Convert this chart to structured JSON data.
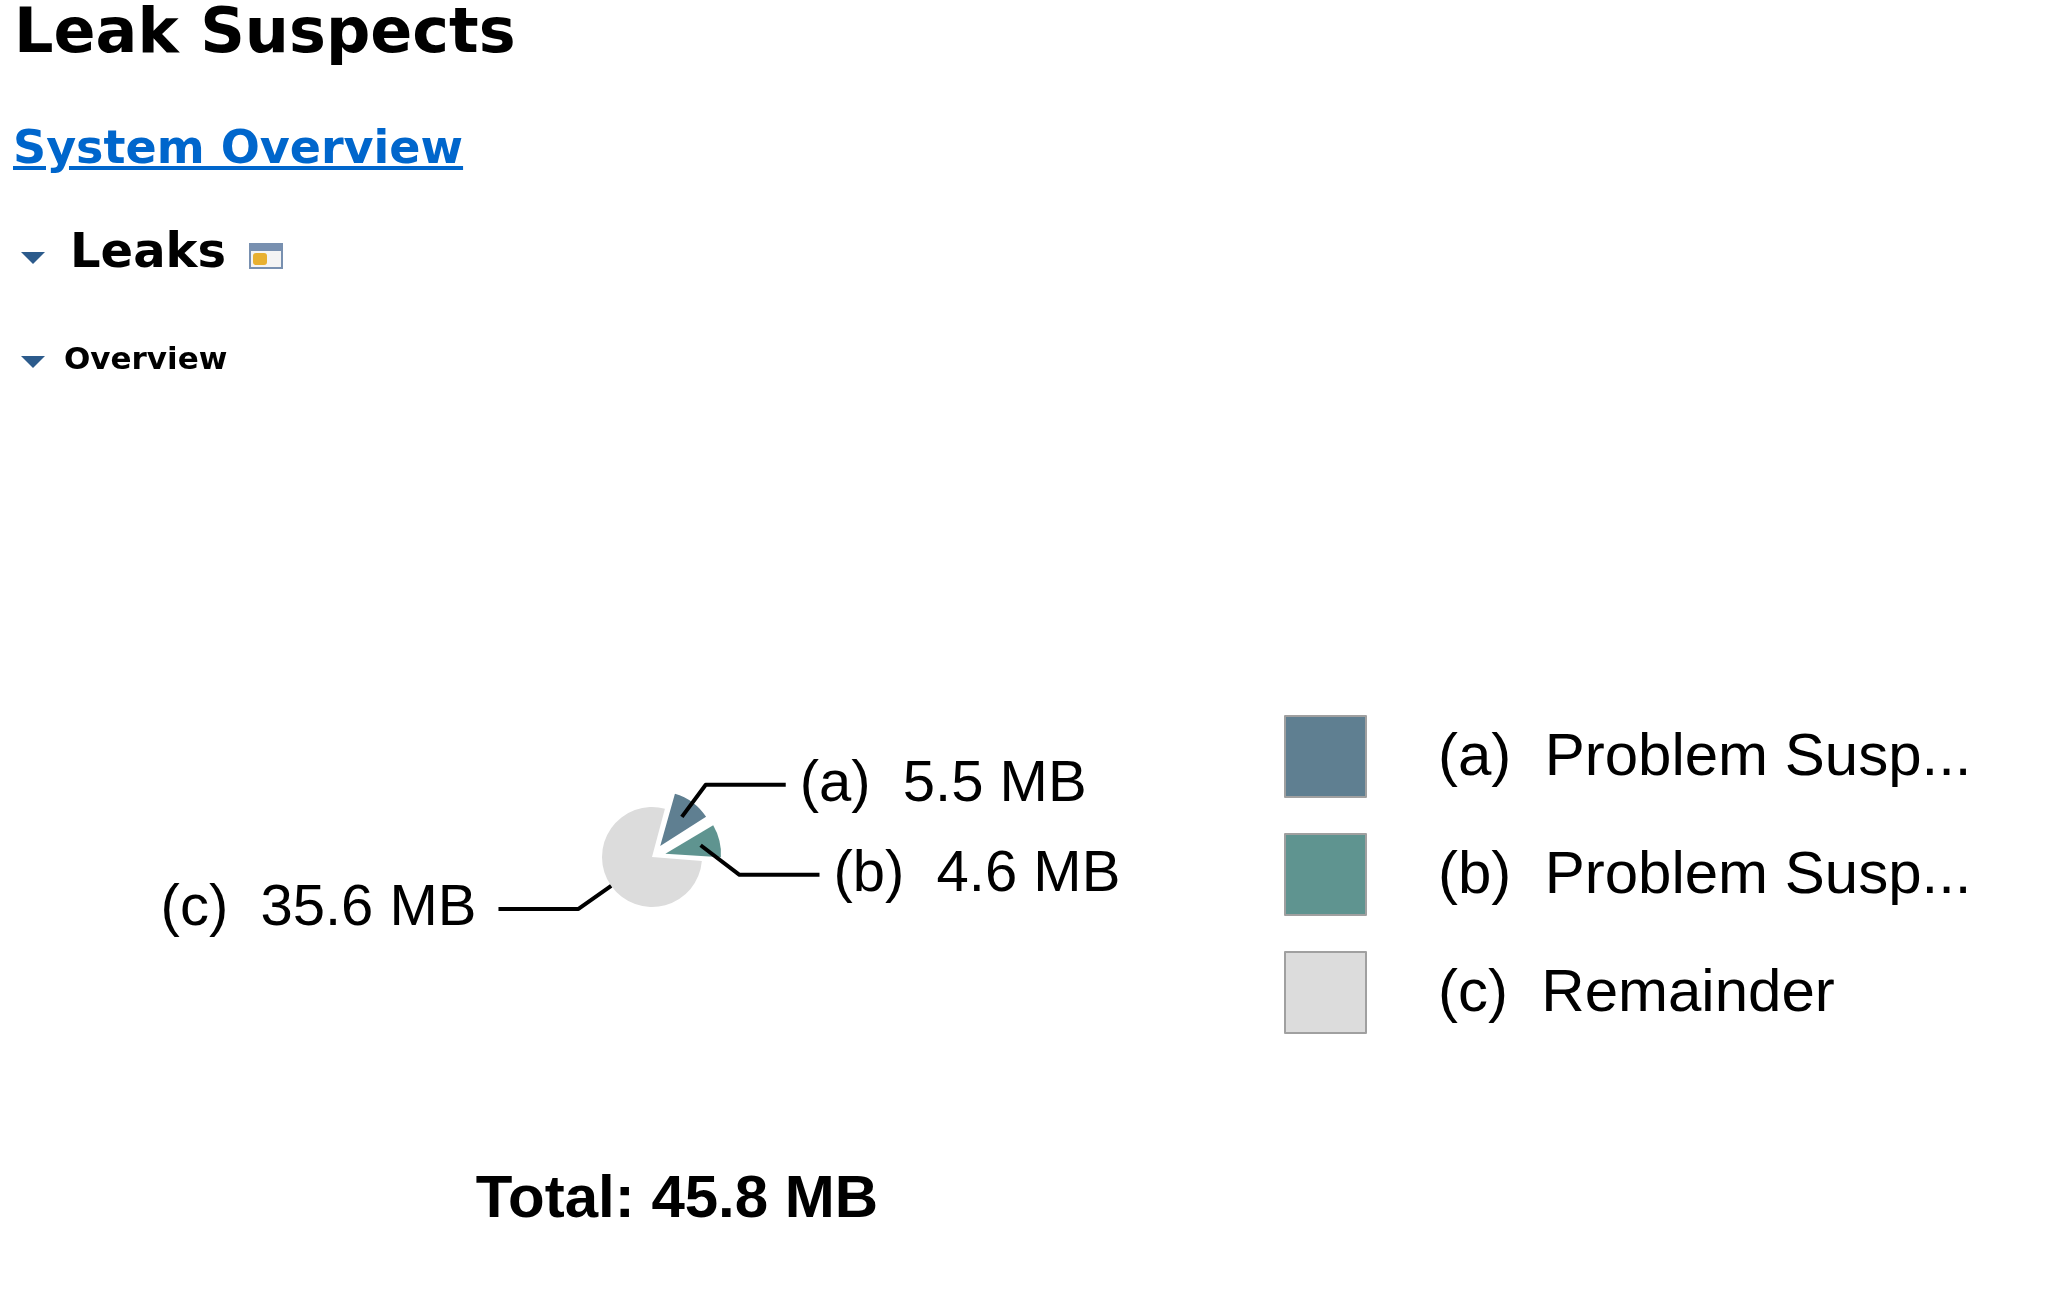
{
  "chart_data": {
    "type": "pie",
    "title": "Leak Suspects",
    "annotations": [
      "System Overview",
      "Leaks",
      "Overview",
      "Total: 45.8 MB"
    ],
    "categories": [
      "(a)  Problem Susp...",
      "(b)  Problem Susp...",
      "(c)  Remainder"
    ],
    "values": [
      5.5,
      4.6,
      35.6
    ],
    "colors": [
      "#5f7f91",
      "#5f9490",
      "#dcdcdc"
    ],
    "value_labels": [
      "(a)  5.5 MB",
      "(b)  4.6 MB",
      "(c)  35.6 MB"
    ],
    "legend": "right"
  }
}
